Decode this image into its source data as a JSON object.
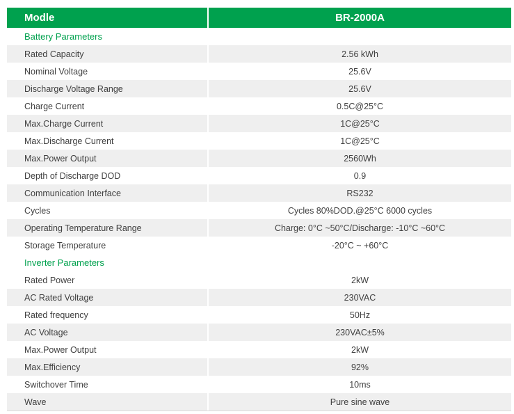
{
  "colors": {
    "header_green": "#00a14e",
    "section_green": "#00a14e",
    "row_gray": "#efefef",
    "text_dark": "#404040",
    "header_text": "#ffffff"
  },
  "header": {
    "left": "Modle",
    "right": "BR-2000A"
  },
  "battery": {
    "title": "Battery Parameters",
    "rows": [
      {
        "label": "Rated Capacity",
        "value": "2.56 kWh"
      },
      {
        "label": "Nominal Voltage",
        "value": "25.6V"
      },
      {
        "label": "Discharge Voltage Range",
        "value": "25.6V"
      },
      {
        "label": "Charge Current",
        "value": "0.5C@25°C"
      },
      {
        "label": "Max.Charge Current",
        "value": "1C@25°C"
      },
      {
        "label": "Max.Discharge Current",
        "value": "1C@25°C"
      },
      {
        "label": "Max.Power Output",
        "value": "2560Wh"
      },
      {
        "label": "Depth of Discharge DOD",
        "value": "0.9"
      },
      {
        "label": "Communication Interface",
        "value": "RS232"
      },
      {
        "label": "Cycles",
        "value": "Cycles 80%DOD.@25°C 6000 cycles"
      },
      {
        "label": "Operating Temperature Range",
        "value": "Charge: 0°C ~50°C/Discharge: -10°C ~60°C"
      },
      {
        "label": "Storage Temperature",
        "value": "-20°C ~ +60°C"
      }
    ]
  },
  "inverter": {
    "title": "Inverter Parameters",
    "rows": [
      {
        "label": "Rated Power",
        "value": "2kW"
      },
      {
        "label": "AC Rated Voltage",
        "value": "230VAC"
      },
      {
        "label": "Rated frequency",
        "value": "50Hz"
      },
      {
        "label": "AC Voltage",
        "value": "230VAC±5%"
      },
      {
        "label": "Max.Power Output",
        "value": "2kW"
      },
      {
        "label": "Max.Efficiency",
        "value": "92%"
      },
      {
        "label": "Switchover Time",
        "value": "10ms"
      },
      {
        "label": "Wave",
        "value": "Pure sine wave"
      }
    ]
  }
}
